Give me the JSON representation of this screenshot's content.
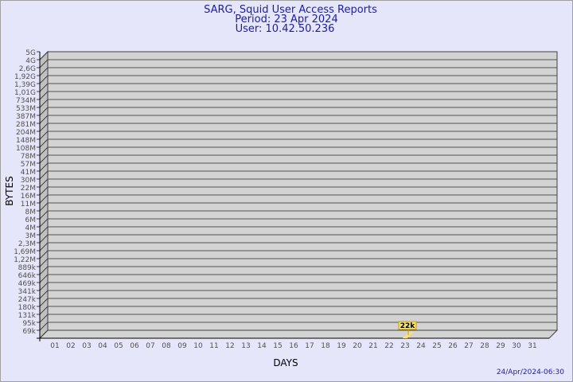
{
  "chart_data": {
    "type": "bar",
    "title": "SARG, Squid User Access Reports",
    "subtitle_lines": [
      "Period: 23 Apr 2024",
      "User: 10.42.50.236"
    ],
    "xlabel": "DAYS",
    "ylabel": "BYTES",
    "y_scale": "log",
    "y_tick_labels": [
      "5G",
      "4G",
      "2,6G",
      "1,92G",
      "1,39G",
      "1,01G",
      "734M",
      "533M",
      "387M",
      "281M",
      "204M",
      "148M",
      "108M",
      "78M",
      "57M",
      "41M",
      "30M",
      "22M",
      "16M",
      "11M",
      "8M",
      "6M",
      "4M",
      "3M",
      "2,3M",
      "1,69M",
      "1,22M",
      "889k",
      "646k",
      "469k",
      "341k",
      "247k",
      "180k",
      "131k",
      "95k",
      "69k"
    ],
    "categories": [
      "01",
      "02",
      "03",
      "04",
      "05",
      "06",
      "07",
      "08",
      "09",
      "10",
      "11",
      "12",
      "13",
      "14",
      "15",
      "16",
      "17",
      "18",
      "19",
      "20",
      "21",
      "22",
      "23",
      "24",
      "25",
      "26",
      "27",
      "28",
      "29",
      "30",
      "31"
    ],
    "bars": [
      {
        "category": "23",
        "value": 22000,
        "label": "22k"
      }
    ],
    "grid": true,
    "colors": {
      "background": "#e6e6fa",
      "plot": "#d3d3d3",
      "bar": "#f5e27a",
      "title": "#1c1ca0"
    }
  },
  "footer": {
    "timestamp": "24/Apr/2024-06:30"
  }
}
